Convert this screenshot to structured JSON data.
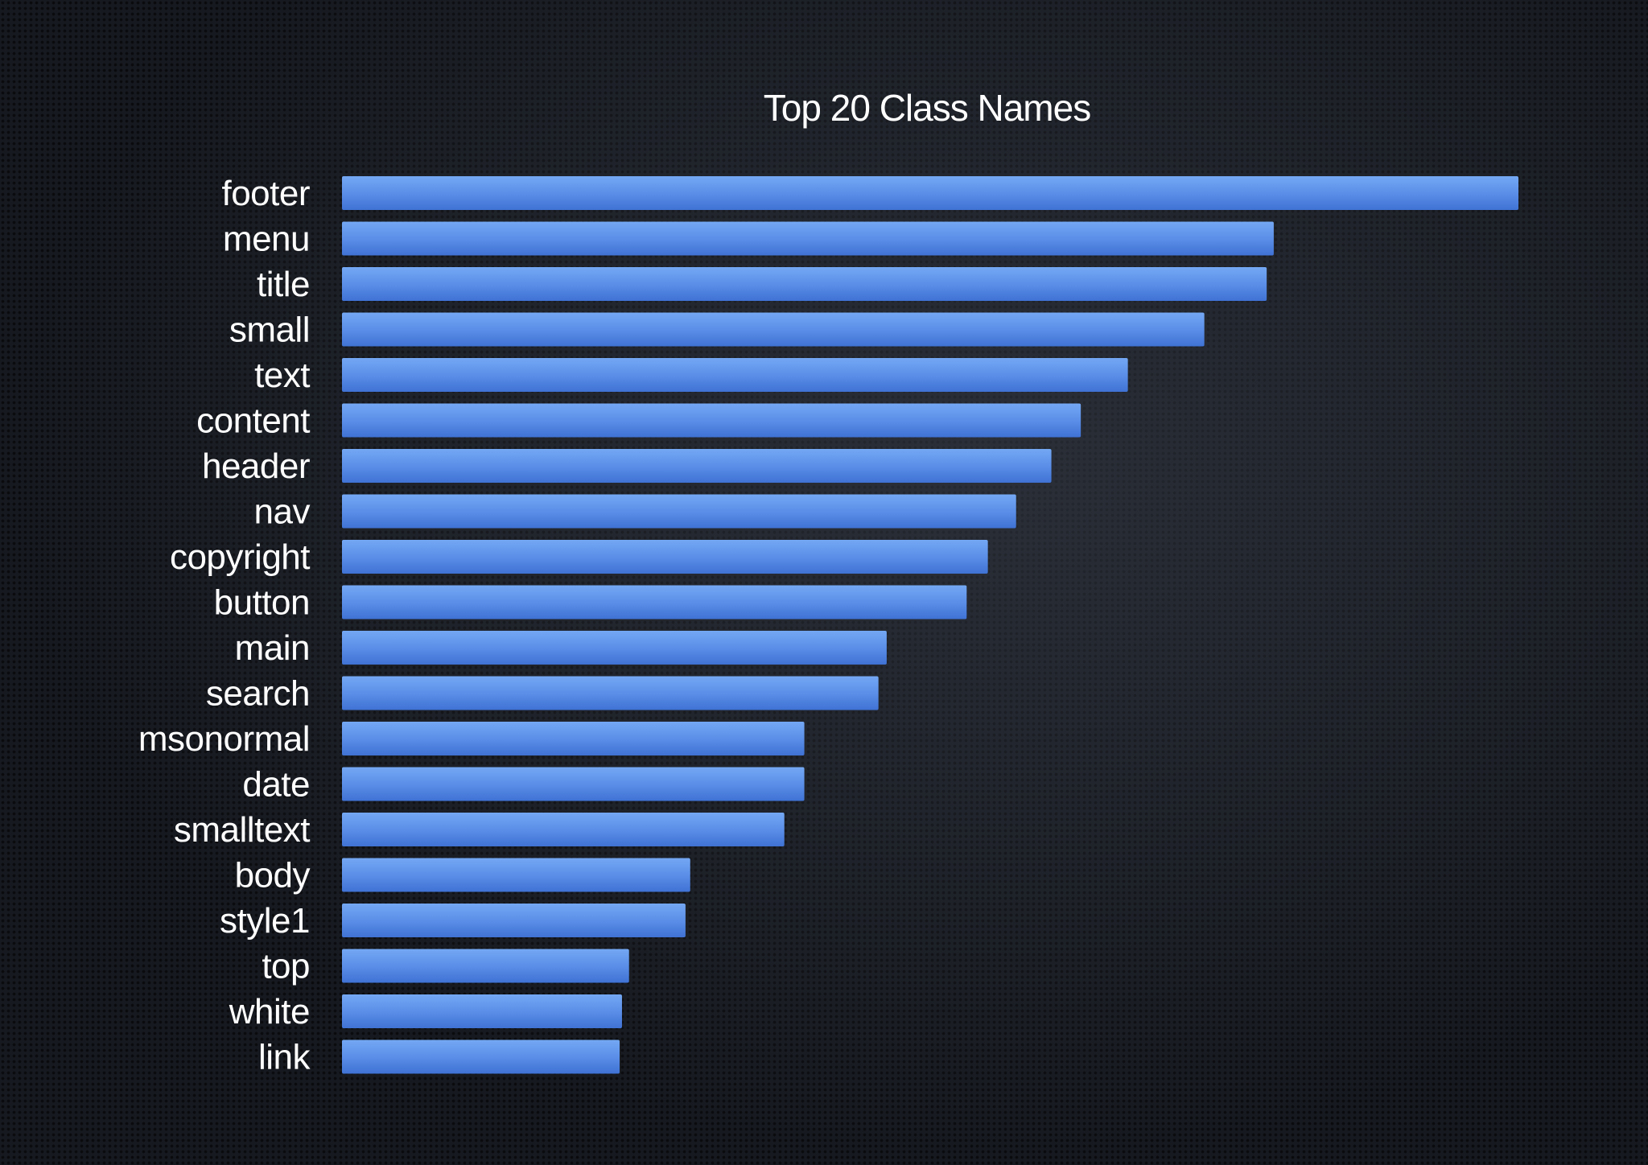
{
  "chart_data": {
    "type": "bar",
    "orientation": "horizontal",
    "title": "Top 20 Class Names",
    "xlabel": "",
    "ylabel": "",
    "grid": false,
    "legend": "none",
    "bar_color": "#5b8fe8",
    "bar_color_light": "#74a8f4",
    "bar_color_dark": "#3f72d4",
    "categories": [
      "footer",
      "menu",
      "title",
      "small",
      "text",
      "content",
      "header",
      "nav",
      "copyright",
      "button",
      "main",
      "search",
      "msonormal",
      "date",
      "smalltext",
      "body",
      "style1",
      "top",
      "white",
      "link"
    ],
    "values": [
      100,
      79.2,
      78.6,
      73.3,
      66.8,
      62.8,
      60.3,
      57.3,
      54.9,
      53.1,
      46.3,
      45.6,
      39.3,
      39.3,
      37.6,
      29.6,
      29.2,
      24.4,
      23.8,
      23.6
    ],
    "xlim": [
      0,
      100
    ]
  }
}
